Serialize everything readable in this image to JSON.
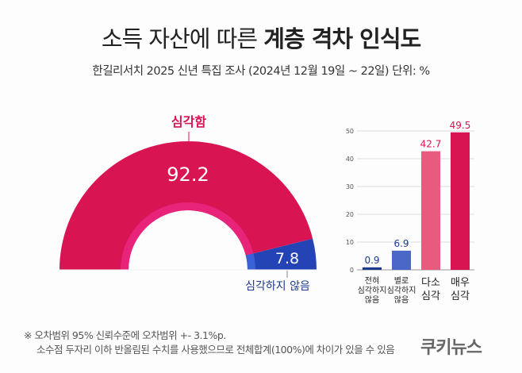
{
  "title": {
    "normal": "소득 자산에 따른 ",
    "bold": "계층 격차 인식도"
  },
  "subtitle": "한길리서치 2025 신년 특집 조사 (2024년 12월 19일 ~ 22일) 단위: %",
  "chart_data": [
    {
      "type": "pie",
      "style": "semi-donut",
      "slices": [
        {
          "label": "심각함",
          "value": 92.2,
          "color": "#d91452"
        },
        {
          "label": "심각하지 않음",
          "value": 7.8,
          "color": "#2443b5"
        }
      ]
    },
    {
      "type": "bar",
      "categories": [
        [
          "전혀",
          "심각하지",
          "않음"
        ],
        [
          "별로",
          "심각하지",
          "않음"
        ],
        [
          "다소",
          "심각"
        ],
        [
          "매우",
          "심각"
        ]
      ],
      "values": [
        0.9,
        6.9,
        42.7,
        49.5
      ],
      "colors": [
        "#1d3a8f",
        "#4a67c8",
        "#e85a7e",
        "#d91452"
      ],
      "label_colors": [
        "#1d3a8f",
        "#1d3a8f",
        "#d91452",
        "#d91452"
      ],
      "ylim": [
        0,
        50
      ],
      "yticks": [
        0,
        10,
        20,
        30,
        40,
        50
      ],
      "grid": true
    }
  ],
  "notes": [
    "※ 오차범위 95% 신뢰수준에 오차범위 +- 3.1%p.",
    "소수점 두자리 이하 반올림된 수치를 사용했으므로 전체합계(100%)에 차이가 있을 수 있음"
  ],
  "logo": "쿠키뉴스"
}
